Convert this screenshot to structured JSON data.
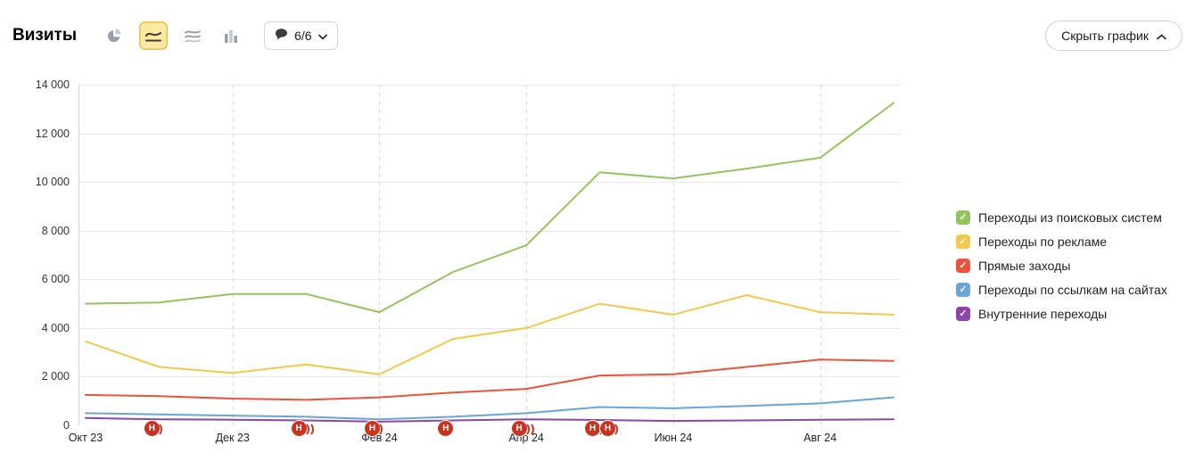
{
  "header": {
    "title": "Визиты",
    "chart_type_selected": "line",
    "notes_dropdown": {
      "label": "6/6"
    },
    "hide_chart_label": "Скрыть график"
  },
  "colors": {
    "annotation_badge": "#c9341f",
    "selected_icon_bg": "#ffe9a2",
    "grid": "#e9e9e9"
  },
  "chart_data": {
    "type": "line",
    "title": "Визиты",
    "x": [
      "Окт 23",
      "Ноя 23",
      "Дек 23",
      "Янв 24",
      "Фев 24",
      "Мар 24",
      "Апр 24",
      "Май 24",
      "Июн 24",
      "Июл 24",
      "Авг 24",
      "Сен 24"
    ],
    "x_tick_indices": [
      0,
      2,
      4,
      6,
      8,
      10
    ],
    "x_tick_labels": [
      "Окт 23",
      "Дек 23",
      "Фев 24",
      "Апр 24",
      "Июн 24",
      "Авг 24"
    ],
    "ylim": [
      0,
      14000
    ],
    "y_ticks": [
      0,
      2000,
      4000,
      6000,
      8000,
      10000,
      12000,
      14000
    ],
    "grid": "on",
    "legend_position": "right",
    "series": [
      {
        "name": "Переходы из поисковых систем",
        "color": "#94c45c",
        "values": [
          5000,
          5050,
          5400,
          5400,
          4650,
          6300,
          7400,
          10400,
          10150,
          10550,
          11000,
          13250
        ]
      },
      {
        "name": "Переходы по рекламе",
        "color": "#f2c94c",
        "values": [
          3450,
          2400,
          2150,
          2500,
          2100,
          3550,
          4000,
          5000,
          4550,
          5350,
          4650,
          4550
        ]
      },
      {
        "name": "Прямые заходы",
        "color": "#ed5338",
        "values": [
          1250,
          1200,
          1100,
          1050,
          1150,
          1350,
          1500,
          2050,
          2100,
          2400,
          2700,
          2650
        ]
      },
      {
        "name": "Переходы по ссылкам на сайтах",
        "color": "#6aa5d8",
        "values": [
          500,
          450,
          400,
          350,
          250,
          350,
          500,
          750,
          700,
          800,
          900,
          1150
        ]
      },
      {
        "name": "Внутренние переходы",
        "color": "#8e44ad",
        "values": [
          300,
          250,
          230,
          200,
          150,
          200,
          250,
          220,
          180,
          200,
          230,
          250
        ]
      }
    ],
    "annotations": [
      {
        "label": "Н",
        "month_index": 1,
        "arcs": 1
      },
      {
        "label": "Н",
        "month_index": 3,
        "arcs": 2
      },
      {
        "label": "Н",
        "month_index": 4,
        "arcs": 1
      },
      {
        "label": "Н",
        "month_index": 5,
        "arcs": 0
      },
      {
        "label": "Н",
        "month_index": 6,
        "arcs": 2
      },
      {
        "label": "Н",
        "month_index": 7,
        "arcs": 2
      },
      {
        "label": "Н",
        "month_index": 7,
        "arcs": 1,
        "dx": 17
      }
    ]
  }
}
